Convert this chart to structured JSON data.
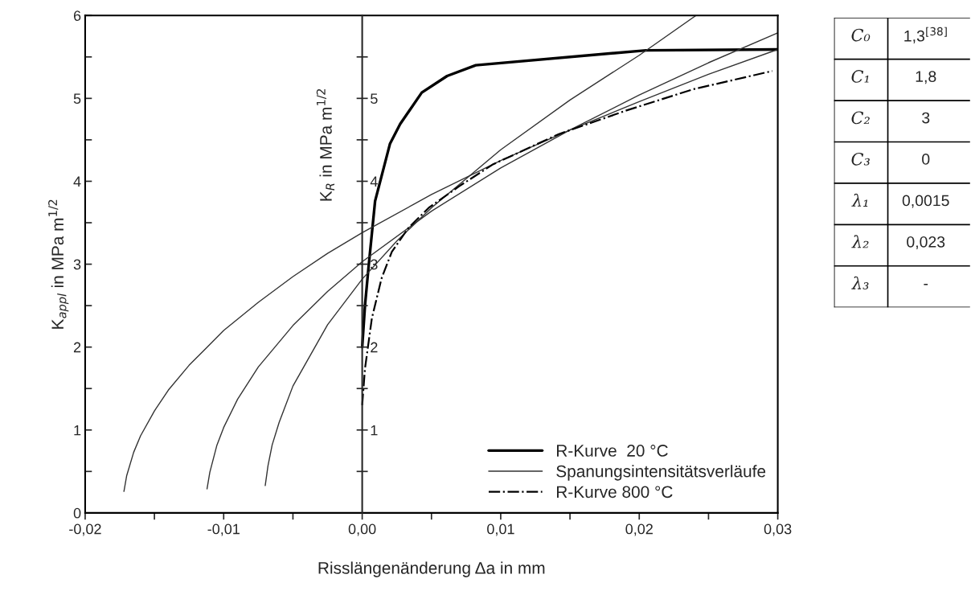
{
  "chart_data": [
    {
      "type": "line",
      "xlabel": "Risslängenänderung Δa in mm",
      "ylabel": "K$_{appl}$ in MPa m$^{1/2}$",
      "y2label": "K$_{R}$ in MPa m$^{1/2}$",
      "xlim": [
        -0.02,
        0.03
      ],
      "ylim": [
        0,
        6
      ],
      "y2lim": [
        0,
        6
      ],
      "xticks": [
        {
          "value": -0.02,
          "label": "-0,02"
        },
        {
          "value": -0.015,
          "label": null
        },
        {
          "value": -0.01,
          "label": "-0,01"
        },
        {
          "value": -0.005,
          "label": null
        },
        {
          "value": 0,
          "label": "0,00"
        },
        {
          "value": 0.005,
          "label": null
        },
        {
          "value": 0.01,
          "label": "0,01"
        },
        {
          "value": 0.015,
          "label": null
        },
        {
          "value": 0.02,
          "label": "0,02"
        },
        {
          "value": 0.025,
          "label": null
        },
        {
          "value": 0.03,
          "label": "0,03"
        }
      ],
      "yticks": [
        0,
        {
          "value": 0.5,
          "label": null
        },
        1,
        {
          "value": 1.5,
          "label": null
        },
        2,
        {
          "value": 2.5,
          "label": null
        },
        3,
        {
          "value": 3.5,
          "label": null
        },
        4,
        {
          "value": 4.5,
          "label": null
        },
        5,
        {
          "value": 5.5,
          "label": null
        },
        6
      ],
      "y2ticks": [
        {
          "value": 0.5,
          "label": null
        },
        1,
        {
          "value": 1.5,
          "label": null
        },
        2,
        {
          "value": 2.5,
          "label": null
        },
        3,
        {
          "value": 3.5,
          "label": null
        },
        4,
        {
          "value": 4.5,
          "label": null
        },
        5,
        {
          "value": 5.5,
          "label": null
        }
      ],
      "grid": false,
      "legend": "bottom right",
      "series": [
        {
          "name": "R-Kurve  20 °C",
          "color": "#000000",
          "line_style": "solid",
          "x": [
            0,
            0.0002,
            0.00045,
            0.00093,
            0.002,
            0.00274,
            0.0043,
            0.00613,
            0.0082,
            0.0205,
            0.03
          ],
          "values": [
            2.0,
            2.5,
            2.95,
            3.76,
            4.45,
            4.69,
            5.07,
            5.27,
            5.4,
            5.58,
            5.59
          ]
        },
        {
          "name": "Spanungsintensitätsverläufe",
          "color": "#333333",
          "line_style": "solid",
          "x": [
            -0.0172,
            -0.017,
            -0.0165,
            -0.016,
            -0.015,
            -0.014,
            -0.0125,
            -0.01,
            -0.0075,
            -0.005,
            -0.0025,
            0,
            0.005,
            0.01,
            0.015,
            0.02,
            0.025,
            0.03
          ],
          "values": [
            0.26,
            0.45,
            0.73,
            0.93,
            1.23,
            1.48,
            1.78,
            2.2,
            2.54,
            2.85,
            3.13,
            3.38,
            3.84,
            4.25,
            4.62,
            4.96,
            5.29,
            5.59
          ]
        },
        {
          "color": "#333333",
          "line_style": "solid",
          "x": [
            -0.0112,
            -0.011,
            -0.0105,
            -0.01,
            -0.009,
            -0.0075,
            -0.005,
            -0.0025,
            0,
            0.005,
            0.01,
            0.015,
            0.02,
            0.025,
            0.03
          ],
          "values": [
            0.29,
            0.49,
            0.81,
            1.03,
            1.37,
            1.76,
            2.26,
            2.67,
            3.03,
            3.64,
            4.16,
            4.62,
            5.04,
            5.43,
            5.79
          ]
        },
        {
          "color": "#333333",
          "line_style": "solid",
          "x": [
            -0.007,
            -0.0068,
            -0.0065,
            -0.006,
            -0.005,
            -0.0025,
            0,
            0.0025,
            0.005,
            0.01,
            0.015,
            0.02,
            0.0241
          ],
          "values": [
            0.33,
            0.57,
            0.82,
            1.09,
            1.53,
            2.27,
            2.82,
            3.28,
            3.68,
            4.38,
            4.98,
            5.52,
            6.0
          ]
        },
        {
          "name": "R-Kurve 800 °C",
          "color": "#000000",
          "line_style": "dashdot",
          "x": [
            0,
            0.0002,
            0.0007,
            0.0014,
            0.00214,
            0.00335,
            0.0048,
            0.007,
            0.0094,
            0.0142,
            0.019,
            0.0239,
            0.0296
          ],
          "values": [
            1.3,
            1.74,
            2.35,
            2.83,
            3.15,
            3.44,
            3.68,
            3.94,
            4.2,
            4.57,
            4.85,
            5.11,
            5.33
          ]
        }
      ]
    },
    {
      "type": "other",
      "y_categories": [
        "C₀",
        "C₁",
        "C₂",
        "C₃",
        "λ₁",
        "λ₂",
        "λ₃"
      ],
      "cell_labels": [
        [
          "1,3$^{[38]}$"
        ],
        [
          "1,8"
        ],
        [
          "3"
        ],
        [
          "0"
        ],
        [
          "0,0015"
        ],
        [
          "0,023"
        ],
        [
          "-"
        ]
      ]
    }
  ]
}
